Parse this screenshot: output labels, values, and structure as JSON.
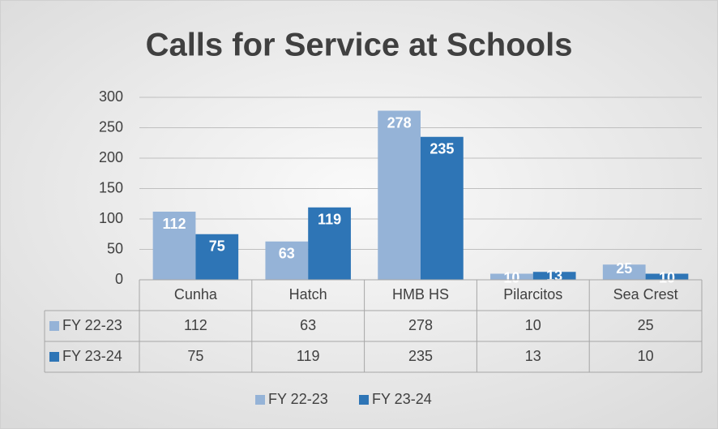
{
  "chart_data": {
    "type": "bar",
    "title": "Calls for Service at Schools",
    "categories": [
      "Cunha",
      "Hatch",
      "HMB HS",
      "Pilarcitos",
      "Sea Crest"
    ],
    "series": [
      {
        "name": "FY 22-23",
        "color": "#95b3d7",
        "values": [
          112,
          63,
          278,
          10,
          25
        ]
      },
      {
        "name": "FY 23-24",
        "color": "#2e75b6",
        "values": [
          75,
          119,
          235,
          13,
          10
        ]
      }
    ],
    "ylim": [
      0,
      300
    ],
    "yticks": [
      0,
      50,
      100,
      150,
      200,
      250,
      300
    ],
    "grid": true,
    "data_table": true,
    "legend": "bottom"
  }
}
